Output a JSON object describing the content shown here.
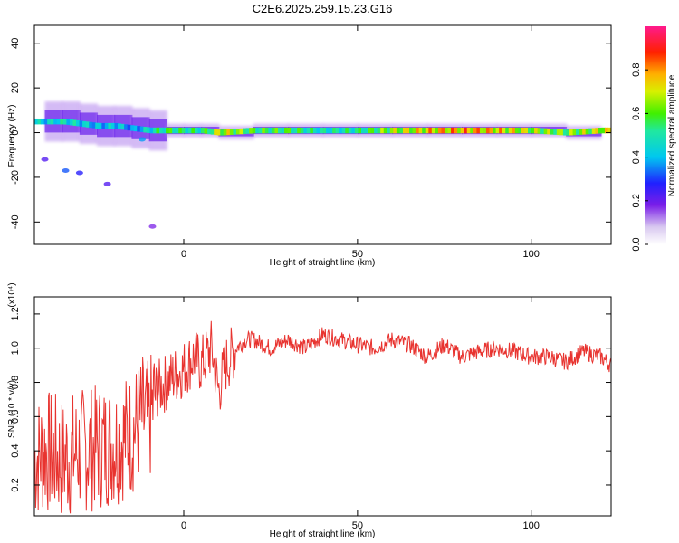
{
  "title": "C2E6.2025.259.15.23.G16",
  "colors": {
    "snr_line": "#e8332f",
    "frame": "#000000"
  },
  "chart_data": [
    {
      "type": "heatmap",
      "xlabel": "Height of straight line (km)",
      "ylabel": "Frequency (Hz)",
      "xlim": [
        -43,
        123
      ],
      "ylim": [
        -50,
        48
      ],
      "xticks": [
        0,
        50,
        100
      ],
      "yticks": [
        -40,
        -20,
        0,
        20,
        40
      ],
      "colorbar": {
        "label": "Normalized spectral amplitude",
        "range": [
          0.0,
          1.0
        ],
        "ticks": [
          0.0,
          0.2,
          0.4,
          0.6,
          0.8
        ],
        "tick_labels": [
          "0.0",
          "0.2",
          "0.4",
          "0.6",
          "0.8"
        ],
        "colormap": "white-purple-blue-cyan-green-yellow-red-magenta"
      },
      "ridge": [
        {
          "x": -40,
          "y": 5,
          "amp": 0.5
        },
        {
          "x": -35,
          "y": 5,
          "amp": 0.55
        },
        {
          "x": -30,
          "y": 4,
          "amp": 0.5
        },
        {
          "x": -25,
          "y": 3,
          "amp": 0.45
        },
        {
          "x": -20,
          "y": 3,
          "amp": 0.5
        },
        {
          "x": -15,
          "y": 2,
          "amp": 0.4
        },
        {
          "x": -10,
          "y": 1,
          "amp": 0.55
        },
        {
          "x": -5,
          "y": 1,
          "amp": 0.65
        },
        {
          "x": 0,
          "y": 1,
          "amp": 0.6
        },
        {
          "x": 5,
          "y": 1,
          "amp": 0.6
        },
        {
          "x": 10,
          "y": 0,
          "amp": 0.8
        },
        {
          "x": 20,
          "y": 1,
          "amp": 0.65
        },
        {
          "x": 30,
          "y": 1,
          "amp": 0.65
        },
        {
          "x": 40,
          "y": 1,
          "amp": 0.55
        },
        {
          "x": 50,
          "y": 1,
          "amp": 0.6
        },
        {
          "x": 60,
          "y": 1,
          "amp": 0.75
        },
        {
          "x": 70,
          "y": 1,
          "amp": 0.85
        },
        {
          "x": 80,
          "y": 1,
          "amp": 0.9
        },
        {
          "x": 90,
          "y": 1,
          "amp": 0.85
        },
        {
          "x": 100,
          "y": 1,
          "amp": 0.75
        },
        {
          "x": 110,
          "y": 0,
          "amp": 0.7
        },
        {
          "x": 120,
          "y": 1,
          "amp": 0.8
        }
      ],
      "scatter_blobs": [
        {
          "x": -40,
          "y": -12,
          "amp": 0.1
        },
        {
          "x": -34,
          "y": -17,
          "amp": 0.2
        },
        {
          "x": -30,
          "y": -18,
          "amp": 0.15
        },
        {
          "x": -22,
          "y": -23,
          "amp": 0.1
        },
        {
          "x": -12,
          "y": -3,
          "amp": 0.25
        },
        {
          "x": -9,
          "y": -42,
          "amp": 0.05
        }
      ]
    },
    {
      "type": "line",
      "xlabel": "Height of straight line (km)",
      "ylabel": "SNR (10 * v/v)",
      "yscale_label": "(x10⁴)",
      "xlim": [
        -43,
        123
      ],
      "ylim": [
        0.02,
        1.3
      ],
      "xticks": [
        0,
        50,
        100
      ],
      "yticks": [
        0.2,
        0.4,
        0.6,
        0.8,
        1.0,
        1.2
      ],
      "series": [
        {
          "x": [
            -43,
            -40,
            -35,
            -30,
            -25,
            -20,
            -15,
            -12,
            -10,
            -8,
            -5,
            -2,
            0,
            3,
            5,
            8,
            10,
            12,
            15,
            18,
            20,
            25,
            30,
            35,
            40,
            45,
            50,
            55,
            60,
            65,
            70,
            75,
            80,
            85,
            90,
            95,
            100,
            105,
            110,
            115,
            120,
            123
          ],
          "y": [
            0.35,
            0.4,
            0.35,
            0.4,
            0.42,
            0.45,
            0.5,
            0.6,
            0.55,
            0.75,
            0.8,
            0.85,
            0.88,
            0.95,
            0.9,
            1.0,
            0.75,
            0.9,
            1.0,
            1.05,
            1.05,
            1.0,
            1.05,
            1.0,
            1.08,
            1.05,
            1.02,
            1.0,
            1.05,
            1.02,
            0.95,
            1.02,
            0.95,
            0.98,
            1.0,
            0.98,
            0.95,
            0.95,
            0.92,
            0.98,
            0.95,
            0.9
          ]
        }
      ]
    }
  ]
}
